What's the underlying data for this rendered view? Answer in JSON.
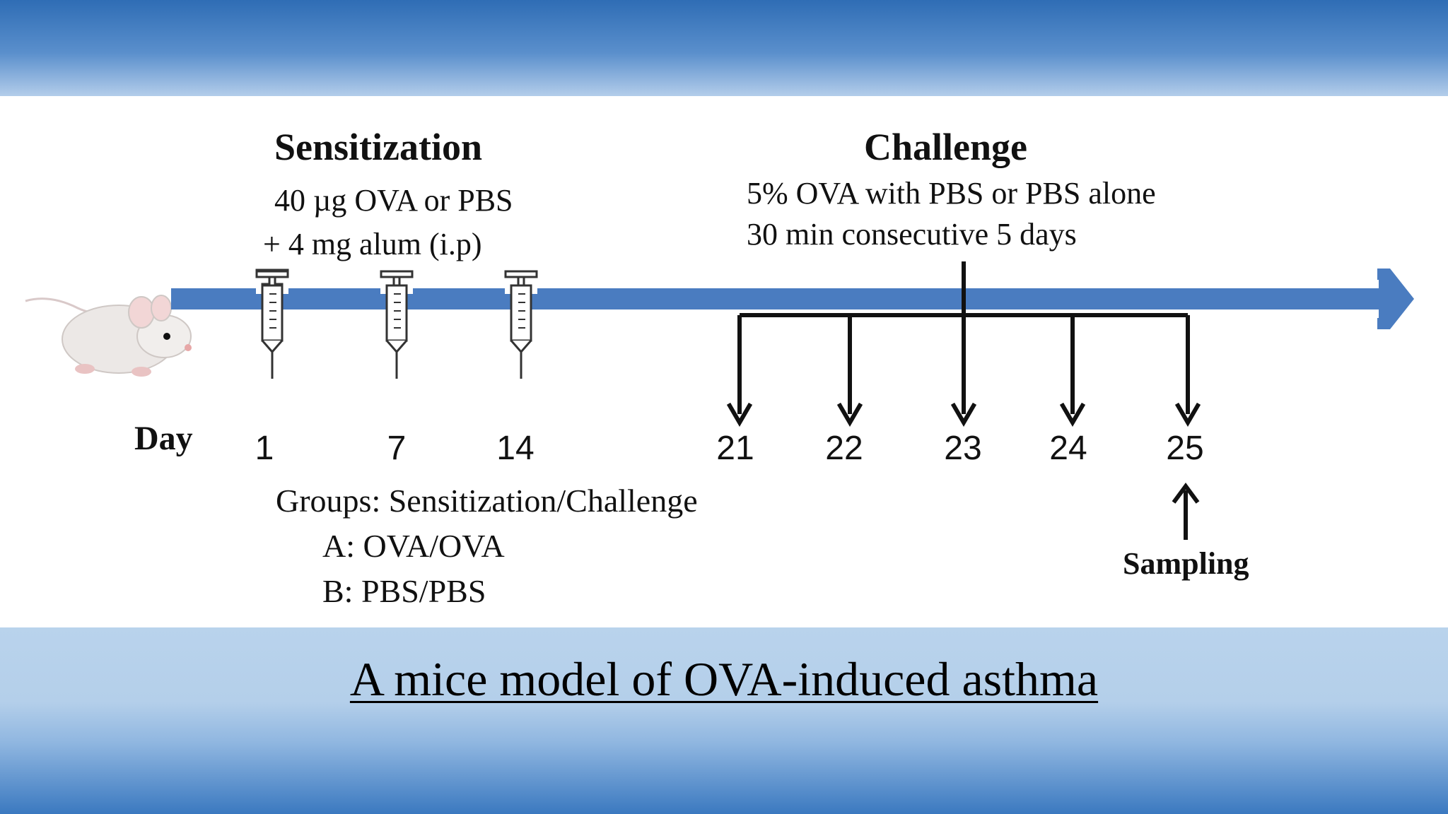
{
  "sensitization": {
    "title": "Sensitization",
    "line1": "40 µg OVA or PBS",
    "line2": "+ 4 mg alum (i.p)",
    "days": [
      "1",
      "7",
      "14"
    ]
  },
  "challenge": {
    "title": "Challenge",
    "line1": "5% OVA with PBS or PBS alone",
    "line2": "30 min consecutive 5 days",
    "days": [
      "21",
      "22",
      "23",
      "24",
      "25"
    ]
  },
  "day_label": "Day",
  "groups": {
    "title": "Groups: Sensitization/Challenge",
    "a": "A: OVA/OVA",
    "b": "B: PBS/PBS"
  },
  "sampling_label": "Sampling",
  "caption": "A mice model of OVA-induced asthma",
  "colors": {
    "timeline": "#4a7cc0",
    "top_band": "#2f6db5",
    "bottom_band": "#b4cfea"
  }
}
